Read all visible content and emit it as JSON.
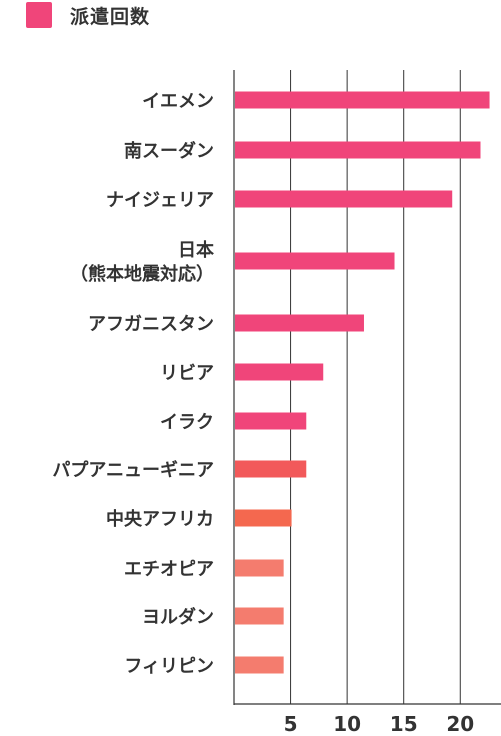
{
  "chart_data": {
    "type": "bar",
    "orientation": "horizontal",
    "categories": [
      "イエメン",
      "南スーダン",
      "ナイジェリア",
      "日本\n（熊本地震対応）",
      "アフガニスタン",
      "リビア",
      "イラク",
      "パプアニューギニア",
      "中央アフリカ",
      "エチオピア",
      "ヨルダン",
      "フィリピン"
    ],
    "series": [
      {
        "name": "派遣回数",
        "values": [
          22.5,
          21.7,
          19.2,
          14.1,
          11.4,
          7.8,
          6.3,
          6.3,
          5.0,
          4.3,
          4.3,
          4.3
        ],
        "bar_colors": [
          "#f0457a",
          "#f0457a",
          "#f0457a",
          "#f0457a",
          "#f0457a",
          "#f0457a",
          "#f0457a",
          "#f2595a",
          "#f4684f",
          "#f47c6e",
          "#f47c6e",
          "#f47c6e"
        ]
      }
    ],
    "xticks": [
      5,
      10,
      15,
      20
    ],
    "xlim": [
      0,
      23.6
    ],
    "grid": true,
    "legend_position": "top-left",
    "legend_color": "#f0457a",
    "axis_color": "#333333",
    "grid_color": "#333333"
  }
}
